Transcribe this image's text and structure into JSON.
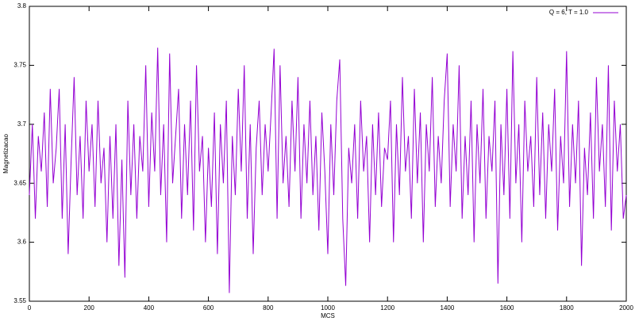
{
  "chart_data": {
    "type": "line",
    "xlabel": "MCS",
    "ylabel": "Magnetizacao",
    "xlim": [
      0,
      2000
    ],
    "xticks": [
      0,
      200,
      400,
      600,
      800,
      1000,
      1200,
      1400,
      1600,
      1800,
      2000
    ],
    "ylim": [
      3.55,
      3.8
    ],
    "yticks": [
      3.55,
      3.6,
      3.65,
      3.7,
      3.75,
      3.8
    ],
    "legend": "top-right",
    "grid": false,
    "x": [
      0,
      10,
      20,
      30,
      40,
      50,
      60,
      70,
      80,
      90,
      100,
      110,
      120,
      130,
      140,
      150,
      160,
      170,
      180,
      190,
      200,
      210,
      220,
      230,
      240,
      250,
      260,
      270,
      280,
      290,
      300,
      310,
      320,
      330,
      340,
      350,
      360,
      370,
      380,
      390,
      400,
      410,
      420,
      430,
      440,
      450,
      460,
      470,
      480,
      490,
      500,
      510,
      520,
      530,
      540,
      550,
      560,
      570,
      580,
      590,
      600,
      610,
      620,
      630,
      640,
      650,
      660,
      670,
      680,
      690,
      700,
      710,
      720,
      730,
      740,
      750,
      760,
      770,
      780,
      790,
      800,
      810,
      820,
      830,
      840,
      850,
      860,
      870,
      880,
      890,
      900,
      910,
      920,
      930,
      940,
      950,
      960,
      970,
      980,
      990,
      1000,
      1010,
      1020,
      1030,
      1040,
      1050,
      1060,
      1070,
      1080,
      1090,
      1100,
      1110,
      1120,
      1130,
      1140,
      1150,
      1160,
      1170,
      1180,
      1190,
      1200,
      1210,
      1220,
      1230,
      1240,
      1250,
      1260,
      1270,
      1280,
      1290,
      1300,
      1310,
      1320,
      1330,
      1340,
      1350,
      1360,
      1370,
      1380,
      1390,
      1400,
      1410,
      1420,
      1430,
      1440,
      1450,
      1460,
      1470,
      1480,
      1490,
      1500,
      1510,
      1520,
      1530,
      1540,
      1550,
      1560,
      1570,
      1580,
      1590,
      1600,
      1610,
      1620,
      1630,
      1640,
      1650,
      1660,
      1670,
      1680,
      1690,
      1700,
      1710,
      1720,
      1730,
      1740,
      1750,
      1760,
      1770,
      1780,
      1790,
      1800,
      1810,
      1820,
      1830,
      1840,
      1850,
      1860,
      1870,
      1880,
      1890,
      1900,
      1910,
      1920,
      1930,
      1940,
      1950,
      1960,
      1970,
      1980,
      1990,
      2000
    ],
    "series": [
      {
        "name": "Q = 6, T = 1.0",
        "color": "#9400d3",
        "values": [
          3.64,
          3.7,
          3.62,
          3.69,
          3.66,
          3.71,
          3.63,
          3.73,
          3.65,
          3.68,
          3.73,
          3.62,
          3.7,
          3.59,
          3.67,
          3.74,
          3.64,
          3.69,
          3.62,
          3.72,
          3.66,
          3.7,
          3.63,
          3.72,
          3.65,
          3.68,
          3.6,
          3.69,
          3.62,
          3.7,
          3.58,
          3.67,
          3.57,
          3.72,
          3.64,
          3.7,
          3.62,
          3.69,
          3.66,
          3.75,
          3.63,
          3.71,
          3.66,
          3.765,
          3.64,
          3.7,
          3.6,
          3.76,
          3.65,
          3.69,
          3.73,
          3.62,
          3.7,
          3.64,
          3.72,
          3.61,
          3.75,
          3.66,
          3.69,
          3.6,
          3.68,
          3.63,
          3.71,
          3.59,
          3.7,
          3.65,
          3.72,
          3.557,
          3.69,
          3.64,
          3.73,
          3.66,
          3.75,
          3.62,
          3.7,
          3.59,
          3.68,
          3.72,
          3.64,
          3.7,
          3.66,
          3.71,
          3.764,
          3.62,
          3.75,
          3.65,
          3.69,
          3.63,
          3.72,
          3.66,
          3.74,
          3.62,
          3.7,
          3.65,
          3.72,
          3.64,
          3.69,
          3.61,
          3.71,
          3.66,
          3.59,
          3.7,
          3.64,
          3.72,
          3.755,
          3.62,
          3.563,
          3.68,
          3.65,
          3.7,
          3.62,
          3.72,
          3.66,
          3.69,
          3.6,
          3.7,
          3.64,
          3.71,
          3.63,
          3.68,
          3.67,
          3.72,
          3.6,
          3.7,
          3.64,
          3.74,
          3.66,
          3.69,
          3.62,
          3.73,
          3.65,
          3.71,
          3.6,
          3.7,
          3.66,
          3.74,
          3.63,
          3.69,
          3.65,
          3.72,
          3.76,
          3.63,
          3.7,
          3.66,
          3.75,
          3.62,
          3.69,
          3.64,
          3.72,
          3.6,
          3.7,
          3.65,
          3.73,
          3.62,
          3.69,
          3.66,
          3.72,
          3.565,
          3.7,
          3.64,
          3.73,
          3.62,
          3.762,
          3.65,
          3.7,
          3.6,
          3.72,
          3.66,
          3.69,
          3.63,
          3.74,
          3.64,
          3.71,
          3.62,
          3.7,
          3.66,
          3.73,
          3.61,
          3.69,
          3.65,
          3.762,
          3.63,
          3.7,
          3.65,
          3.72,
          3.58,
          3.68,
          3.64,
          3.71,
          3.62,
          3.74,
          3.66,
          3.7,
          3.63,
          3.75,
          3.61,
          3.72,
          3.66,
          3.7,
          3.62,
          3.64
        ]
      }
    ]
  }
}
